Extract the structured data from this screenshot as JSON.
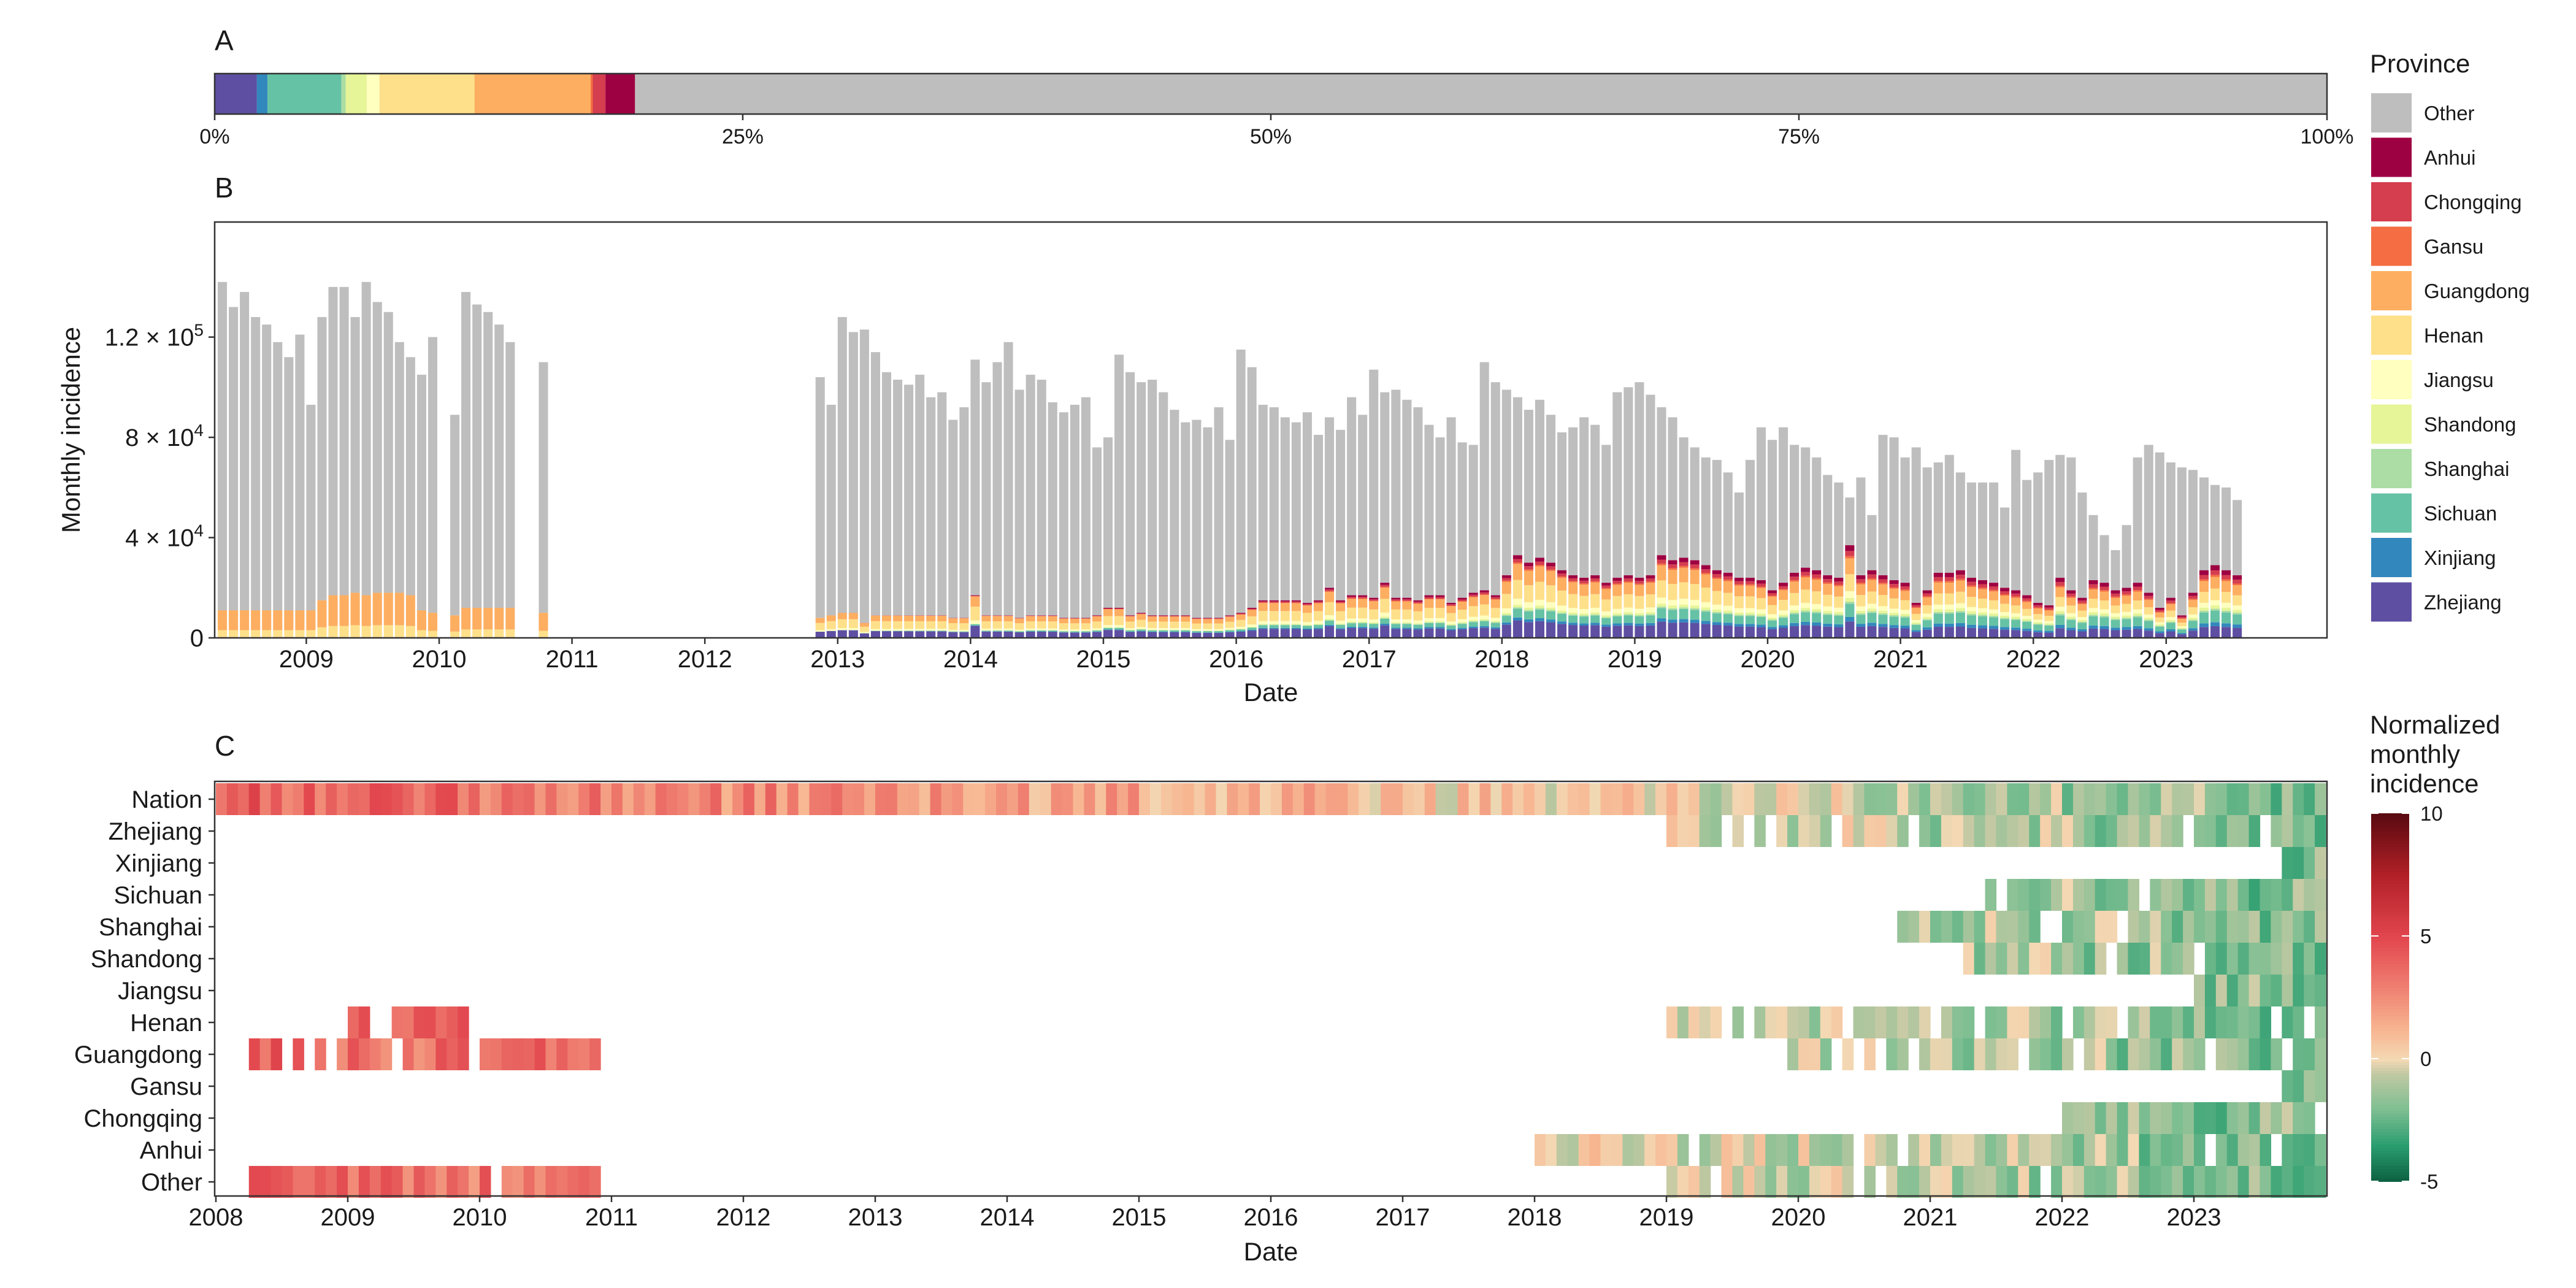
{
  "colors": {
    "Other": "#bebebe",
    "Anhui": "#9e0142",
    "Chongqing": "#d53e4f",
    "Gansu": "#f46d43",
    "Guangdong": "#fdae61",
    "Henan": "#fee08b",
    "Jiangsu": "#ffffbf",
    "Shandong": "#e6f598",
    "Shanghai": "#abdda4",
    "Sichuan": "#66c2a5",
    "Xinjiang": "#3288bd",
    "Zhejiang": "#5e4fa2"
  },
  "chart_data": [
    {
      "panel": "A",
      "type": "bar",
      "title": "A",
      "orientation": "horizontal-stacked",
      "categories": [
        "Zhejiang",
        "Xinjiang",
        "Sichuan",
        "Shanghai",
        "Shandong",
        "Jiangsu",
        "Henan",
        "Guangdong",
        "Gansu",
        "Chongqing",
        "Anhui",
        "Other"
      ],
      "values": [
        2.0,
        0.5,
        3.5,
        0.2,
        1.0,
        0.6,
        4.5,
        5.5,
        0.1,
        0.6,
        1.4,
        80.1
      ],
      "xlim": [
        0,
        100
      ],
      "x_ticks": [
        "0%",
        "25%",
        "50%",
        "75%",
        "100%"
      ]
    },
    {
      "panel": "B",
      "type": "bar",
      "title": "B",
      "stacked": true,
      "xlabel": "Date",
      "ylabel": "Monthly incidence",
      "ylim": [
        0,
        150000
      ],
      "y_ticks": [
        {
          "value": 0,
          "label": "0",
          "exp": ""
        },
        {
          "value": 40000,
          "label": "4 × 10",
          "exp": "4"
        },
        {
          "value": 80000,
          "label": "8 × 10",
          "exp": "4"
        },
        {
          "value": 120000,
          "label": "1.2 × 10",
          "exp": "5"
        }
      ],
      "x_ticks": [
        "2009",
        "2010",
        "2011",
        "2012",
        "2013",
        "2014",
        "2015",
        "2016",
        "2017",
        "2018",
        "2019",
        "2020",
        "2021",
        "2022",
        "2023"
      ],
      "x_start": "2008-05",
      "totals": [
        142000,
        132000,
        138000,
        128000,
        125000,
        118000,
        112000,
        121000,
        93000,
        128000,
        140000,
        140000,
        128000,
        142000,
        134000,
        130000,
        118000,
        112000,
        105000,
        120000,
        0,
        89000,
        138000,
        133000,
        130000,
        125000,
        118000,
        0,
        0,
        110000,
        0,
        0,
        0,
        0,
        0,
        0,
        0,
        0,
        0,
        0,
        0,
        0,
        0,
        0,
        0,
        0,
        0,
        0,
        0,
        0,
        0,
        0,
        0,
        0,
        104000,
        93000,
        128000,
        122000,
        123000,
        114000,
        106000,
        103000,
        101000,
        105000,
        96000,
        98000,
        87000,
        92000,
        111000,
        102000,
        110000,
        118000,
        99000,
        105000,
        103000,
        94000,
        90000,
        93000,
        96000,
        76000,
        80000,
        113000,
        106000,
        102000,
        103000,
        98000,
        91000,
        86000,
        87000,
        84000,
        92000,
        79000,
        115000,
        108000,
        93000,
        92000,
        88000,
        86000,
        90000,
        81000,
        88000,
        83000,
        96000,
        89000,
        107000,
        98000,
        99000,
        95000,
        92000,
        85000,
        80000,
        88000,
        78000,
        77000,
        110000,
        102000,
        99000,
        96000,
        91000,
        95000,
        89000,
        82000,
        84000,
        88000,
        85000,
        77000,
        98000,
        100000,
        102000,
        97000,
        92000,
        88000,
        80000,
        76000,
        72000,
        71000,
        66000,
        58000,
        71000,
        84000,
        79000,
        84000,
        77000,
        76000,
        72000,
        65000,
        62000,
        56000,
        64000,
        49000,
        81000,
        80000,
        72000,
        76000,
        68000,
        70000,
        73000,
        66000,
        62000,
        62000,
        62000,
        52000,
        75000,
        63000,
        66000,
        71000,
        73000,
        72000,
        58000,
        49000,
        41000,
        35000,
        45000,
        72000,
        77000,
        74000,
        70000,
        68000,
        67000,
        64000,
        61000,
        60000,
        55000
      ],
      "province_totals": [
        11000,
        11000,
        11000,
        11000,
        11000,
        11000,
        11000,
        11000,
        11000,
        15000,
        17000,
        17000,
        18000,
        17000,
        18000,
        18000,
        18000,
        17000,
        11000,
        10000,
        0,
        9000,
        12000,
        12000,
        12000,
        12000,
        12000,
        0,
        0,
        10000,
        0,
        0,
        0,
        0,
        0,
        0,
        0,
        0,
        0,
        0,
        0,
        0,
        0,
        0,
        0,
        0,
        0,
        0,
        0,
        0,
        0,
        0,
        0,
        0,
        8000,
        9000,
        10000,
        10000,
        6000,
        9000,
        9000,
        9000,
        9000,
        9000,
        9000,
        9000,
        8000,
        8000,
        17000,
        9000,
        9000,
        9000,
        8000,
        9000,
        9000,
        9000,
        8000,
        8000,
        8000,
        9000,
        12000,
        12000,
        9000,
        10000,
        9000,
        9000,
        9000,
        9000,
        8000,
        8000,
        8000,
        9000,
        10000,
        12000,
        15000,
        15000,
        15000,
        15000,
        14000,
        15000,
        20000,
        15000,
        17000,
        17000,
        16000,
        22000,
        16000,
        16000,
        15000,
        17000,
        17000,
        14000,
        16000,
        18000,
        19000,
        17000,
        25000,
        33000,
        30000,
        32000,
        30000,
        27000,
        25000,
        24000,
        25000,
        22000,
        24000,
        25000,
        24000,
        25000,
        33000,
        31000,
        32000,
        31000,
        29000,
        27000,
        26000,
        24000,
        24000,
        23000,
        19000,
        22000,
        26000,
        28000,
        27000,
        25000,
        24000,
        37000,
        25000,
        27000,
        25000,
        23000,
        22000,
        14000,
        19000,
        26000,
        26000,
        27000,
        24000,
        23000,
        22000,
        20000,
        19000,
        17000,
        14000,
        13000,
        24000,
        19000,
        16000,
        23000,
        22000,
        19000,
        20000,
        22000,
        18000,
        12000,
        16000,
        9000,
        18000,
        27000,
        29000,
        27000,
        25000,
        23000,
        22000,
        21000,
        20000,
        19000,
        14000
      ]
    },
    {
      "panel": "C",
      "type": "heatmap",
      "title": "C",
      "xlabel": "Date",
      "x_start": "2008-01",
      "x_ticks": [
        "2008",
        "2009",
        "2010",
        "2011",
        "2012",
        "2013",
        "2014",
        "2015",
        "2016",
        "2017",
        "2018",
        "2019",
        "2020",
        "2021",
        "2022",
        "2023"
      ],
      "rows": [
        "Nation",
        "Zhejiang",
        "Xinjiang",
        "Sichuan",
        "Shanghai",
        "Shandong",
        "Jiangsu",
        "Henan",
        "Guangdong",
        "Gansu",
        "Chongqing",
        "Anhui",
        "Other"
      ],
      "row_ranges": [
        [
          0,
          191
        ],
        [
          132,
          191
        ],
        [
          188,
          191
        ],
        [
          161,
          191
        ],
        [
          153,
          191
        ],
        [
          159,
          191
        ],
        [
          180,
          191
        ],
        [
          12,
          191
        ],
        [
          3,
          191
        ],
        [
          188,
          191
        ],
        [
          168,
          191
        ],
        [
          120,
          191
        ],
        [
          3,
          191
        ]
      ],
      "scale_range": [
        -5,
        10
      ],
      "legend_title": "Normalized monthly incidence",
      "legend_ticks": [
        10,
        5,
        0,
        -5
      ]
    }
  ],
  "legend": {
    "title": "Province",
    "items": [
      "Other",
      "Anhui",
      "Chongqing",
      "Gansu",
      "Guangdong",
      "Henan",
      "Jiangsu",
      "Shandong",
      "Shanghai",
      "Sichuan",
      "Xinjiang",
      "Zhejiang"
    ]
  }
}
